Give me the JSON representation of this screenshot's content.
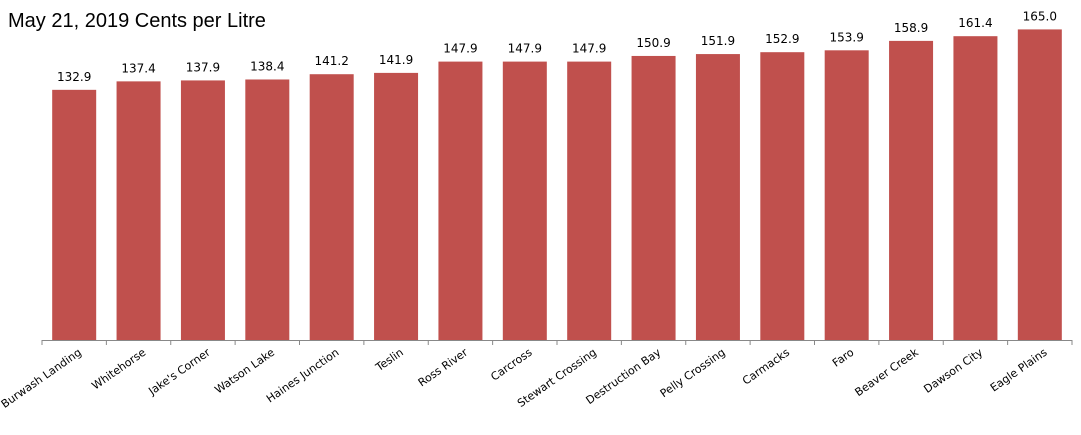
{
  "chart_data": {
    "type": "bar",
    "subtitle": "May 21, 2019 Cents per Litre",
    "categories": [
      "Burwash Landing",
      "Whitehorse",
      "Jake's Corner",
      "Watson Lake",
      "Haines Junction",
      "Teslin",
      "Ross River",
      "Carcross",
      "Stewart Crossing",
      "Destruction Bay",
      "Pelly Crossing",
      "Carmacks",
      "Faro",
      "Beaver Creek",
      "Dawson City",
      "Eagle Plains"
    ],
    "values": [
      132.9,
      137.4,
      137.9,
      138.4,
      141.2,
      141.9,
      147.9,
      147.9,
      147.9,
      150.9,
      151.9,
      152.9,
      153.9,
      158.9,
      161.4,
      165.0
    ],
    "value_labels": [
      "132.9",
      "137.4",
      "137.9",
      "138.4",
      "141.2",
      "141.9",
      "147.9",
      "147.9",
      "147.9",
      "150.9",
      "151.9",
      "152.9",
      "153.9",
      "158.9",
      "161.4",
      "165.0"
    ],
    "color": "#c0504d",
    "ylim": [
      0,
      170
    ]
  }
}
